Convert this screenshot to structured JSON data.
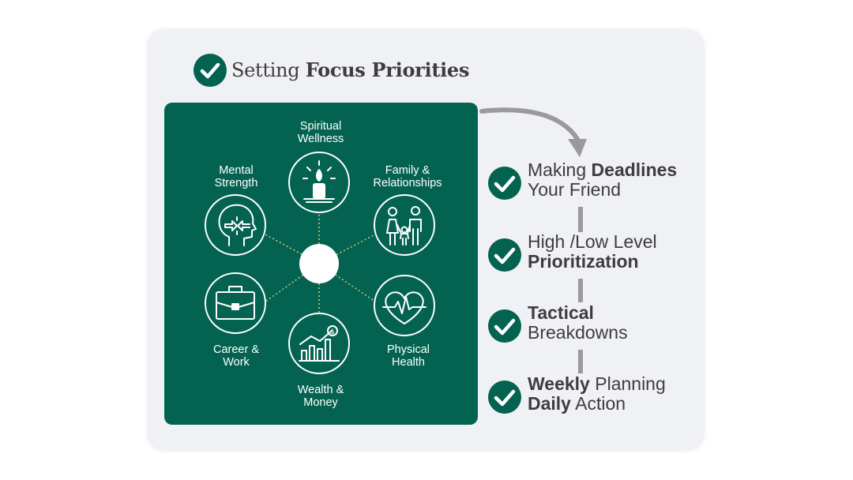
{
  "header": {
    "title_normal": "Setting",
    "title_bold": "Focus Priorities"
  },
  "wheel": {
    "center_label": "",
    "categories": [
      {
        "line1": "Spiritual",
        "line2": "Wellness",
        "icon": "candle-icon"
      },
      {
        "line1": "Family &",
        "line2": "Relationships",
        "icon": "family-icon"
      },
      {
        "line1": "Physical",
        "line2": "Health",
        "icon": "heartbeat-icon"
      },
      {
        "line1": "Wealth &",
        "line2": "Money",
        "icon": "growth-chart-icon"
      },
      {
        "line1": "Career &",
        "line2": "Work",
        "icon": "briefcase-icon"
      },
      {
        "line1": "Mental",
        "line2": "Strength",
        "icon": "head-focus-icon"
      }
    ]
  },
  "steps": [
    {
      "l1a": "Making ",
      "l1b": "Deadlines",
      "l1c": "",
      "l2a": "Your Friend",
      "l2b": "",
      "l2c": ""
    },
    {
      "l1a": "High /Low Level",
      "l1b": "",
      "l1c": "",
      "l2a": "",
      "l2b": "Prioritization",
      "l2c": ""
    },
    {
      "l1a": "",
      "l1b": "Tactical",
      "l1c": "",
      "l2a": "Breakdowns",
      "l2b": "",
      "l2c": ""
    },
    {
      "l1a": "",
      "l1b": "Weekly",
      "l1c": " Planning",
      "l2a": "",
      "l2b": "Daily",
      "l2c": " Action"
    }
  ],
  "colors": {
    "brand_green": "#036350",
    "card_bg": "#f0f1f4",
    "text": "#3d3d3d",
    "connector_gray": "#9a9a9a",
    "spoke_dots": "#c9c27a"
  }
}
